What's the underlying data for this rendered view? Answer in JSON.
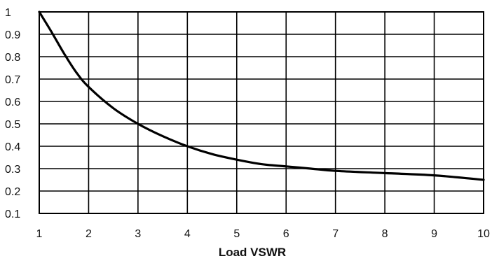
{
  "chart_data": {
    "type": "line",
    "title": "",
    "xlabel": "Load VSWR",
    "ylabel": "",
    "xlim": [
      1,
      10
    ],
    "ylim": [
      0.1,
      1
    ],
    "x_ticks": [
      "1",
      "2",
      "3",
      "4",
      "5",
      "6",
      "7",
      "8",
      "9",
      "10"
    ],
    "y_ticks": [
      "0.1",
      "0.2",
      "0.3",
      "0.4",
      "0.5",
      "0.6",
      "0.7",
      "0.8",
      "0.9",
      "1"
    ],
    "grid": true,
    "legend": "none",
    "series": [
      {
        "x": [
          1,
          1.25,
          1.5,
          1.75,
          2,
          2.5,
          3,
          3.5,
          4,
          4.5,
          5,
          5.5,
          6,
          6.5,
          7,
          8,
          9,
          10
        ],
        "y": [
          1.0,
          0.91,
          0.815,
          0.73,
          0.665,
          0.57,
          0.5,
          0.445,
          0.4,
          0.365,
          0.34,
          0.32,
          0.31,
          0.3,
          0.29,
          0.28,
          0.27,
          0.25
        ]
      }
    ],
    "colors": {
      "line": "#000000",
      "grid": "#000000",
      "frame": "#000000"
    }
  }
}
